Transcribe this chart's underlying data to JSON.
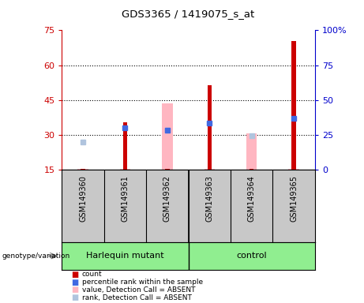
{
  "title": "GDS3365 / 1419075_s_at",
  "samples": [
    "GSM149360",
    "GSM149361",
    "GSM149362",
    "GSM149363",
    "GSM149364",
    "GSM149365"
  ],
  "ylim_left": [
    15,
    75
  ],
  "ylim_right": [
    0,
    100
  ],
  "yticks_left": [
    15,
    30,
    45,
    60,
    75
  ],
  "yticks_right": [
    0,
    25,
    50,
    75,
    100
  ],
  "left_tick_labels": [
    "15",
    "30",
    "45",
    "60",
    "75"
  ],
  "right_tick_labels": [
    "0",
    "25",
    "50",
    "75",
    "100%"
  ],
  "red_bars_top": [
    15.5,
    35.5,
    15.5,
    51.5,
    15.5,
    70.5
  ],
  "pink_bars_top": [
    15.5,
    15.5,
    43.5,
    15.5,
    30.5,
    15.5
  ],
  "blue_sq_y": [
    15,
    33,
    32,
    35,
    15,
    37
  ],
  "lb_sq_y": [
    27,
    15,
    32,
    15,
    29.5,
    15
  ],
  "left_color": "#CC0000",
  "right_color": "#0000CC",
  "pink_color": "#FFB6C1",
  "blue_color": "#4169E1",
  "lightblue_color": "#B0C4DE",
  "group_color": "#90EE90",
  "label_bg": "#C8C8C8",
  "plot_bg": "white",
  "group1_label": "Harlequin mutant",
  "group2_label": "control",
  "group1_samples": [
    0,
    1,
    2
  ],
  "group2_samples": [
    3,
    4,
    5
  ],
  "genotype_label": "genotype/variation",
  "legend_items": [
    {
      "color": "#CC0000",
      "label": "count"
    },
    {
      "color": "#4169E1",
      "label": "percentile rank within the sample"
    },
    {
      "color": "#FFB6C1",
      "label": "value, Detection Call = ABSENT"
    },
    {
      "color": "#B0C4DE",
      "label": "rank, Detection Call = ABSENT"
    }
  ],
  "dotted_lines": [
    30,
    45,
    60
  ],
  "red_bar_width": 0.1,
  "pink_bar_width": 0.25
}
